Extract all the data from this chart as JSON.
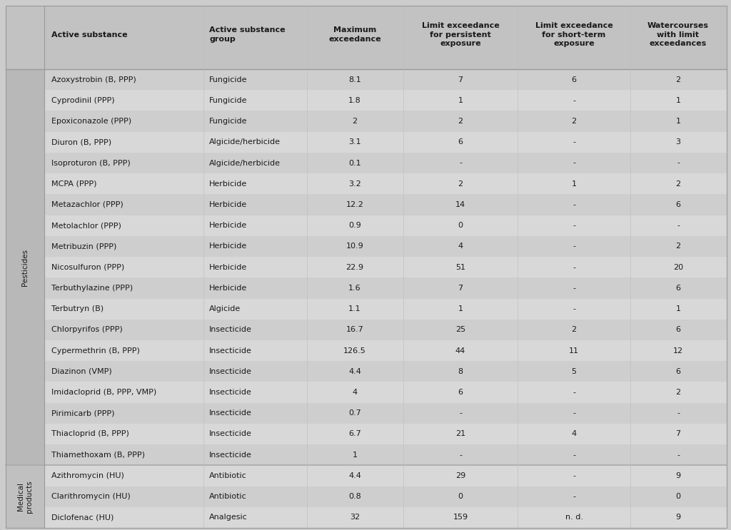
{
  "columns": [
    "Active substance",
    "Active substance\ngroup",
    "Maximum\nexceedance",
    "Limit exceedance\nfor persistent\nexposure",
    "Limit exceedance\nfor short-term\nexposure",
    "Watercourses\nwith limit\nexceedances"
  ],
  "rows": [
    [
      "Azoxystrobin (B, PPP)",
      "Fungicide",
      "8.1",
      "7",
      "6",
      "2"
    ],
    [
      "Cyprodinil (PPP)",
      "Fungicide",
      "1.8",
      "1",
      "-",
      "1"
    ],
    [
      "Epoxiconazole (PPP)",
      "Fungicide",
      "2",
      "2",
      "2",
      "1"
    ],
    [
      "Diuron (B, PPP)",
      "Algicide/herbicide",
      "3.1",
      "6",
      "-",
      "3"
    ],
    [
      "Isoproturon (B, PPP)",
      "Algicide/herbicide",
      "0.1",
      "-",
      "-",
      "-"
    ],
    [
      "MCPA (PPP)",
      "Herbicide",
      "3.2",
      "2",
      "1",
      "2"
    ],
    [
      "Metazachlor (PPP)",
      "Herbicide",
      "12.2",
      "14",
      "-",
      "6"
    ],
    [
      "Metolachlor (PPP)",
      "Herbicide",
      "0.9",
      "0",
      "-",
      "-"
    ],
    [
      "Metribuzin (PPP)",
      "Herbicide",
      "10.9",
      "4",
      "-",
      "2"
    ],
    [
      "Nicosulfuron (PPP)",
      "Herbicide",
      "22.9",
      "51",
      "-",
      "20"
    ],
    [
      "Terbuthylazine (PPP)",
      "Herbicide",
      "1.6",
      "7",
      "-",
      "6"
    ],
    [
      "Terbutryn (B)",
      "Algicide",
      "1.1",
      "1",
      "-",
      "1"
    ],
    [
      "Chlorpyrifos (PPP)",
      "Insecticide",
      "16.7",
      "25",
      "2",
      "6"
    ],
    [
      "Cypermethrin (B, PPP)",
      "Insecticide",
      "126.5",
      "44",
      "11",
      "12"
    ],
    [
      "Diazinon (VMP)",
      "Insecticide",
      "4.4",
      "8",
      "5",
      "6"
    ],
    [
      "Imidacloprid (B, PPP, VMP)",
      "Insecticide",
      "4",
      "6",
      "-",
      "2"
    ],
    [
      "Pirimicarb (PPP)",
      "Insecticide",
      "0.7",
      "-",
      "-",
      "-"
    ],
    [
      "Thiacloprid (B, PPP)",
      "Insecticide",
      "6.7",
      "21",
      "4",
      "7"
    ],
    [
      "Thiamethoxam (B, PPP)",
      "Insecticide",
      "1",
      "-",
      "-",
      "-"
    ],
    [
      "Azithromycin (HU)",
      "Antibiotic",
      "4.4",
      "29",
      "-",
      "9"
    ],
    [
      "Clarithromycin (HU)",
      "Antibiotic",
      "0.8",
      "0",
      "-",
      "0"
    ],
    [
      "Diclofenac (HU)",
      "Analgesic",
      "32",
      "159",
      "n. d.",
      "9"
    ]
  ],
  "cat_pesticides_rows": 19,
  "cat_medical_rows": 3,
  "fig_bg": "#cccccc",
  "header_bg": "#c2c2c2",
  "row_color_even": "#cecece",
  "row_color_odd": "#d8d8d8",
  "cat_bg_pesticides": "#b8b8b8",
  "cat_bg_medical": "#c0c0c0",
  "font_size": 8.0,
  "header_font_size": 8.0,
  "text_color": "#1a1a1a"
}
